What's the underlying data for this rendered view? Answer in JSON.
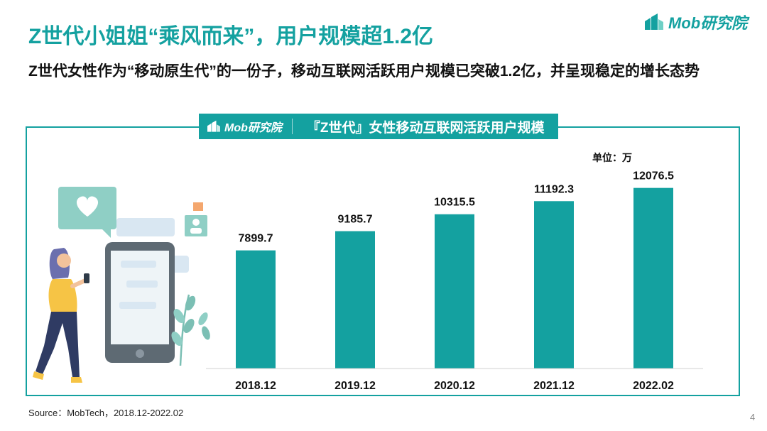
{
  "header": {
    "title": "Z世代小姐姐“乘风而来”，用户规模超1.2亿",
    "subtitle": "Z世代女性作为“移动原生代”的一份子，移动互联网活跃用户规模已突破1.2亿，并呈现稳定的增长态势",
    "brand": "Mob研究院"
  },
  "panel": {
    "brand": "Mob研究院",
    "title": "『Z世代』女性移动互联网活跃用户规模",
    "unit": "单位：万"
  },
  "colors": {
    "accent": "#14a1a0",
    "bar": "#14a1a0"
  },
  "icons": [
    "brand-logo-icon",
    "woman-phone-illustration"
  ],
  "chart_data": {
    "type": "bar",
    "title": "『Z世代』女性移动互联网活跃用户规模",
    "ylabel": "单位：万",
    "categories": [
      "2018.12",
      "2019.12",
      "2020.12",
      "2021.12",
      "2022.02"
    ],
    "values": [
      7899.7,
      9185.7,
      10315.5,
      11192.3,
      12076.5
    ],
    "value_labels": [
      "7899.7",
      "9185.7",
      "10315.5",
      "11192.3",
      "12076.5"
    ],
    "ylim": [
      0,
      14000
    ],
    "grid": false,
    "legend": "none"
  },
  "footer": {
    "source": "Source：MobTech，2018.12-2022.02",
    "page": "4"
  }
}
